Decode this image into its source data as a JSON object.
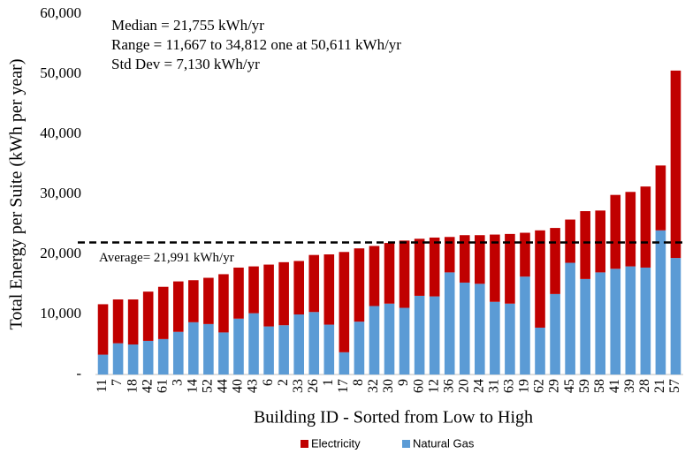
{
  "chart_data": {
    "type": "stacked_bar",
    "x_label": "Building ID - Sorted from Low to High",
    "y_label": "Total Energy per Suite  (kWh per year)",
    "annotations": [
      "Median = 21,755 kWh/yr",
      "Range = 11,667  to 34,812  one at 50,611  kWh/yr",
      "Std Dev = 7,130 kWh/yr"
    ],
    "average": 21991,
    "average_label": "Average= 21,991 kWh/yr",
    "categories": [
      "11",
      "7",
      "18",
      "42",
      "61",
      "3",
      "14",
      "52",
      "44",
      "40",
      "43",
      "6",
      "2",
      "33",
      "26",
      "1",
      "17",
      "8",
      "32",
      "30",
      "9",
      "60",
      "12",
      "36",
      "20",
      "24",
      "31",
      "63",
      "19",
      "62",
      "29",
      "45",
      "59",
      "58",
      "41",
      "39",
      "28",
      "21",
      "57"
    ],
    "series": [
      {
        "name": "Electricity",
        "color": "#c00000",
        "values": [
          8400,
          7300,
          7500,
          8200,
          8700,
          8400,
          7000,
          7700,
          9700,
          8500,
          7800,
          10300,
          10500,
          8900,
          9500,
          11700,
          16700,
          12200,
          10000,
          10100,
          11200,
          9500,
          9800,
          5900,
          7900,
          8100,
          11200,
          11600,
          7300,
          16200,
          11000,
          7200,
          11300,
          10300,
          12300,
          12400,
          13500,
          10800,
          31200
        ]
      },
      {
        "name": "Natural Gas",
        "color": "#5b9bd5",
        "values": [
          3300,
          5200,
          5000,
          5600,
          5900,
          7100,
          8700,
          8400,
          7000,
          9300,
          10200,
          8000,
          8200,
          10000,
          10400,
          8300,
          3700,
          8800,
          11400,
          11800,
          11100,
          13100,
          13000,
          17000,
          15300,
          15100,
          12100,
          11800,
          16300,
          7800,
          13400,
          18600,
          15900,
          17000,
          17600,
          18000,
          17800,
          24000,
          19400
        ]
      }
    ],
    "stack_order": [
      1,
      0
    ],
    "ylim": [
      0,
      60000
    ],
    "yticks": [
      {
        "value": 0,
        "label": "-"
      },
      {
        "value": 10000,
        "label": "10,000"
      },
      {
        "value": 20000,
        "label": "20,000"
      },
      {
        "value": 30000,
        "label": "30,000"
      },
      {
        "value": 40000,
        "label": "40,000"
      },
      {
        "value": 50000,
        "label": "50,000"
      },
      {
        "value": 60000,
        "label": "60,000"
      }
    ],
    "grid": false,
    "legend": "bottom"
  }
}
